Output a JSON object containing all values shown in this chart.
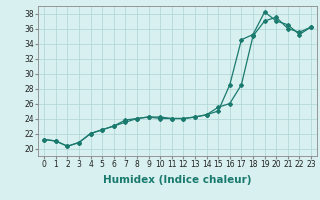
{
  "x": [
    0,
    1,
    2,
    3,
    4,
    5,
    6,
    7,
    8,
    9,
    10,
    11,
    12,
    13,
    14,
    15,
    16,
    17,
    18,
    19,
    20,
    21,
    22,
    23
  ],
  "line1": [
    21.2,
    21.0,
    20.3,
    20.8,
    22.0,
    22.5,
    23.0,
    23.8,
    24.0,
    24.2,
    24.2,
    24.0,
    24.0,
    24.2,
    24.5,
    25.5,
    26.0,
    28.5,
    35.0,
    37.0,
    37.5,
    36.0,
    35.5,
    36.2
  ],
  "line2": [
    21.2,
    21.0,
    20.3,
    20.8,
    22.0,
    22.5,
    23.0,
    23.5,
    24.0,
    24.2,
    24.0,
    24.0,
    24.0,
    24.2,
    24.5,
    25.0,
    28.5,
    34.5,
    35.2,
    38.2,
    37.0,
    36.5,
    35.2,
    36.2
  ],
  "line_color": "#1a7a6e",
  "bg_color": "#d8f0f0",
  "grid_color": "#aed4d4",
  "xlabel": "Humidex (Indice chaleur)",
  "xlim": [
    -0.5,
    23.5
  ],
  "ylim": [
    19,
    39
  ],
  "yticks": [
    20,
    22,
    24,
    26,
    28,
    30,
    32,
    34,
    36,
    38
  ],
  "xticks": [
    0,
    1,
    2,
    3,
    4,
    5,
    6,
    7,
    8,
    9,
    10,
    11,
    12,
    13,
    14,
    15,
    16,
    17,
    18,
    19,
    20,
    21,
    22,
    23
  ],
  "tick_fontsize": 5.5,
  "xlabel_fontsize": 7.5
}
